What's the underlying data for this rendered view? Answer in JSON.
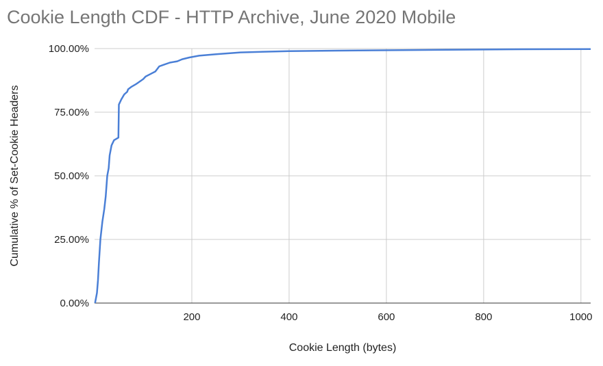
{
  "chart_data": {
    "type": "line",
    "title": "Cookie Length CDF - HTTP Archive, June 2020 Mobile",
    "xlabel": "Cookie Length (bytes)",
    "ylabel": "Cumulative % of Set-Cookie Headers",
    "xlim": [
      0,
      1020
    ],
    "ylim": [
      0,
      1
    ],
    "x_ticks": [
      200,
      400,
      600,
      800,
      1000
    ],
    "x_tick_labels": [
      "200",
      "400",
      "600",
      "800",
      "1000"
    ],
    "y_ticks": [
      0,
      0.25,
      0.5,
      0.75,
      1
    ],
    "y_tick_labels": [
      "0.00%",
      "25.00%",
      "50.00%",
      "75.00%",
      "100.00%"
    ],
    "grid": true,
    "legend": "none",
    "series": [
      {
        "color": "#4a7fd6",
        "points": [
          [
            1,
            0.0
          ],
          [
            3,
            0.02
          ],
          [
            5,
            0.04
          ],
          [
            7,
            0.09
          ],
          [
            9,
            0.16
          ],
          [
            12,
            0.25
          ],
          [
            16,
            0.32
          ],
          [
            20,
            0.37
          ],
          [
            23,
            0.42
          ],
          [
            26,
            0.5
          ],
          [
            29,
            0.53
          ],
          [
            31,
            0.58
          ],
          [
            35,
            0.62
          ],
          [
            40,
            0.64
          ],
          [
            49,
            0.65
          ],
          [
            50,
            0.78
          ],
          [
            55,
            0.8
          ],
          [
            61,
            0.82
          ],
          [
            67,
            0.83
          ],
          [
            69,
            0.84
          ],
          [
            76,
            0.85
          ],
          [
            85,
            0.86
          ],
          [
            100,
            0.88
          ],
          [
            105,
            0.89
          ],
          [
            115,
            0.9
          ],
          [
            125,
            0.91
          ],
          [
            133,
            0.93
          ],
          [
            140,
            0.935
          ],
          [
            155,
            0.945
          ],
          [
            170,
            0.95
          ],
          [
            180,
            0.958
          ],
          [
            195,
            0.965
          ],
          [
            215,
            0.972
          ],
          [
            250,
            0.978
          ],
          [
            300,
            0.985
          ],
          [
            400,
            0.99
          ],
          [
            500,
            0.992
          ],
          [
            700,
            0.995
          ],
          [
            850,
            0.997
          ],
          [
            1020,
            0.998
          ]
        ]
      }
    ]
  }
}
